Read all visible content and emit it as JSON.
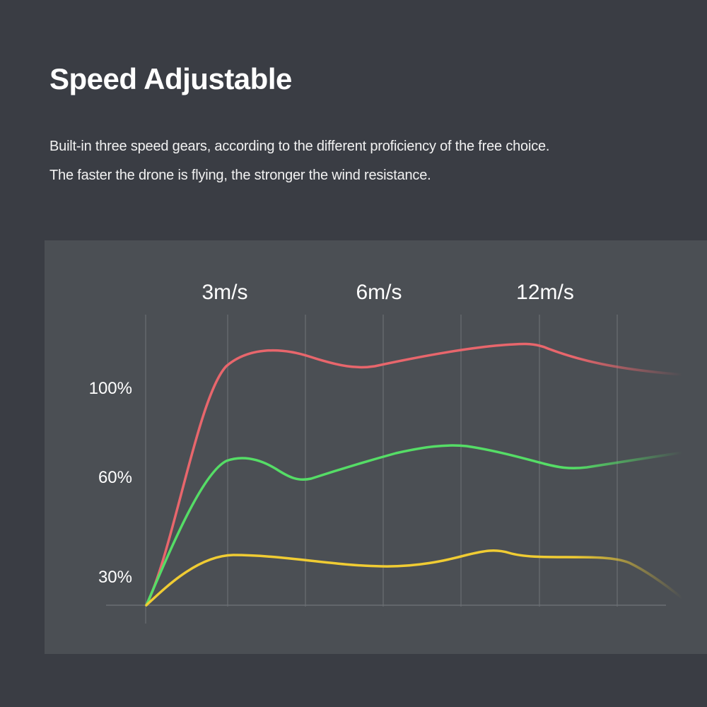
{
  "header": {
    "title": "Speed Adjustable",
    "description_line1": "Built-in three speed gears, according to the different proficiency of the free choice.",
    "description_line2": "The faster the drone is flying, the stronger the wind resistance."
  },
  "chart_data": {
    "type": "line",
    "title": "",
    "xlabel": "",
    "ylabel": "",
    "top_labels": [
      "3m/s",
      "6m/s",
      "12m/s"
    ],
    "y_tick_labels": [
      "100%",
      "60%",
      "30%"
    ],
    "grid": "vertical",
    "series": [
      {
        "color": "#e8666c"
      },
      {
        "color": "#55dd66"
      },
      {
        "color": "#f0cc33"
      }
    ]
  }
}
